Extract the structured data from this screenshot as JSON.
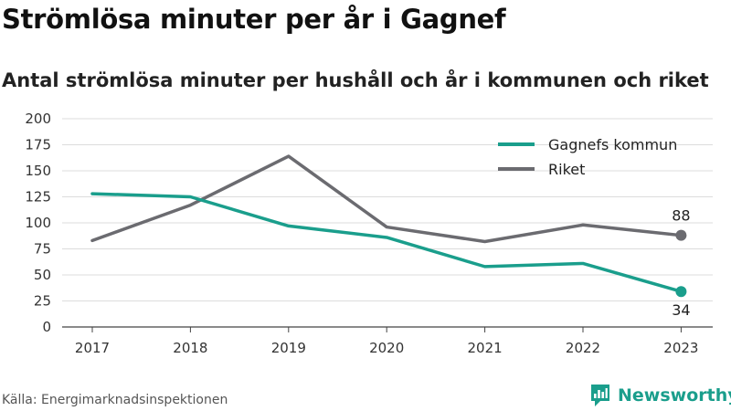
{
  "header": {
    "title": "Strömlösa minuter per år i Gagnef",
    "subtitle": "Antal strömlösa minuter per hushåll och år i kommunen och riket"
  },
  "footer": {
    "source": "Källa: Energimarknadsinspektionen",
    "brand": "Newsworthy",
    "brand_icon": "newsworthy-logo-icon",
    "brand_color": "#1a9e8c"
  },
  "chart_data": {
    "type": "line",
    "title": "Strömlösa minuter per år i Gagnef",
    "subtitle": "Antal strömlösa minuter per hushåll och år i kommunen och riket",
    "xlabel": "",
    "ylabel": "",
    "x": [
      "2017",
      "2018",
      "2019",
      "2020",
      "2021",
      "2022",
      "2023"
    ],
    "ylim": [
      0,
      200
    ],
    "yticks": [
      0,
      25,
      50,
      75,
      100,
      125,
      150,
      175,
      200
    ],
    "grid": true,
    "legend_position": "top-right",
    "series": [
      {
        "name": "Gagnefs kommun",
        "color": "#1a9e8c",
        "values": [
          128,
          125,
          97,
          86,
          58,
          61,
          34
        ],
        "end_label": "34"
      },
      {
        "name": "Riket",
        "color": "#6b6b70",
        "values": [
          83,
          117,
          164,
          96,
          82,
          98,
          88
        ],
        "end_label": "88"
      }
    ]
  }
}
